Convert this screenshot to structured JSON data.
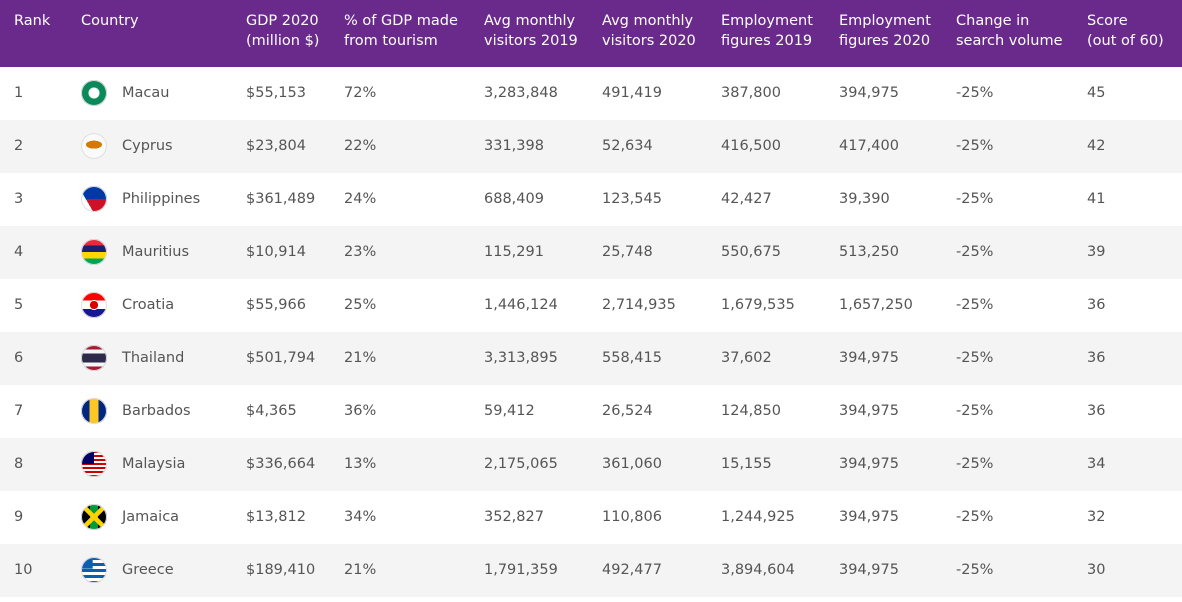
{
  "table": {
    "headers": [
      [
        "Rank"
      ],
      [
        "Country"
      ],
      [
        "GDP 2020",
        "(million $)"
      ],
      [
        "% of GDP made",
        "from tourism"
      ],
      [
        "Avg monthly",
        "visitors 2019"
      ],
      [
        "Avg monthly",
        "visitors 2020"
      ],
      [
        "Employment",
        "figures 2019"
      ],
      [
        "Employment",
        "figures 2020"
      ],
      [
        "Change in",
        "search volume"
      ],
      [
        "Score",
        "(out of 60)"
      ]
    ],
    "rows": [
      [
        "1",
        "Macau",
        "$55,153",
        "72%",
        "3,283,848",
        "491,419",
        "387,800",
        "394,975",
        "-25%",
        "45"
      ],
      [
        "2",
        "Cyprus",
        "$23,804",
        "22%",
        "331,398",
        "52,634",
        "416,500",
        "417,400",
        "-25%",
        "42"
      ],
      [
        "3",
        "Philippines",
        "$361,489",
        "24%",
        "688,409",
        "123,545",
        "42,427",
        "39,390",
        "-25%",
        "41"
      ],
      [
        "4",
        "Mauritius",
        "$10,914",
        "23%",
        "115,291",
        "25,748",
        "550,675",
        "513,250",
        "-25%",
        "39"
      ],
      [
        "5",
        "Croatia",
        "$55,966",
        "25%",
        "1,446,124",
        "2,714,935",
        "1,679,535",
        "1,657,250",
        "-25%",
        "36"
      ],
      [
        "6",
        "Thailand",
        "$501,794",
        "21%",
        "3,313,895",
        "558,415",
        "37,602",
        "394,975",
        "-25%",
        "36"
      ],
      [
        "7",
        "Barbados",
        "$4,365",
        "36%",
        "59,412",
        "26,524",
        "124,850",
        "394,975",
        "-25%",
        "36"
      ],
      [
        "8",
        "Malaysia",
        "$336,664",
        "13%",
        "2,175,065",
        "361,060",
        "15,155",
        "394,975",
        "-25%",
        "34"
      ],
      [
        "9",
        "Jamaica",
        "$13,812",
        "34%",
        "352,827",
        "110,806",
        "1,244,925",
        "394,975",
        "-25%",
        "32"
      ],
      [
        "10",
        "Greece",
        "$189,410",
        "21%",
        "1,791,359",
        "492,477",
        "3,894,604",
        "394,975",
        "-25%",
        "30"
      ]
    ]
  }
}
